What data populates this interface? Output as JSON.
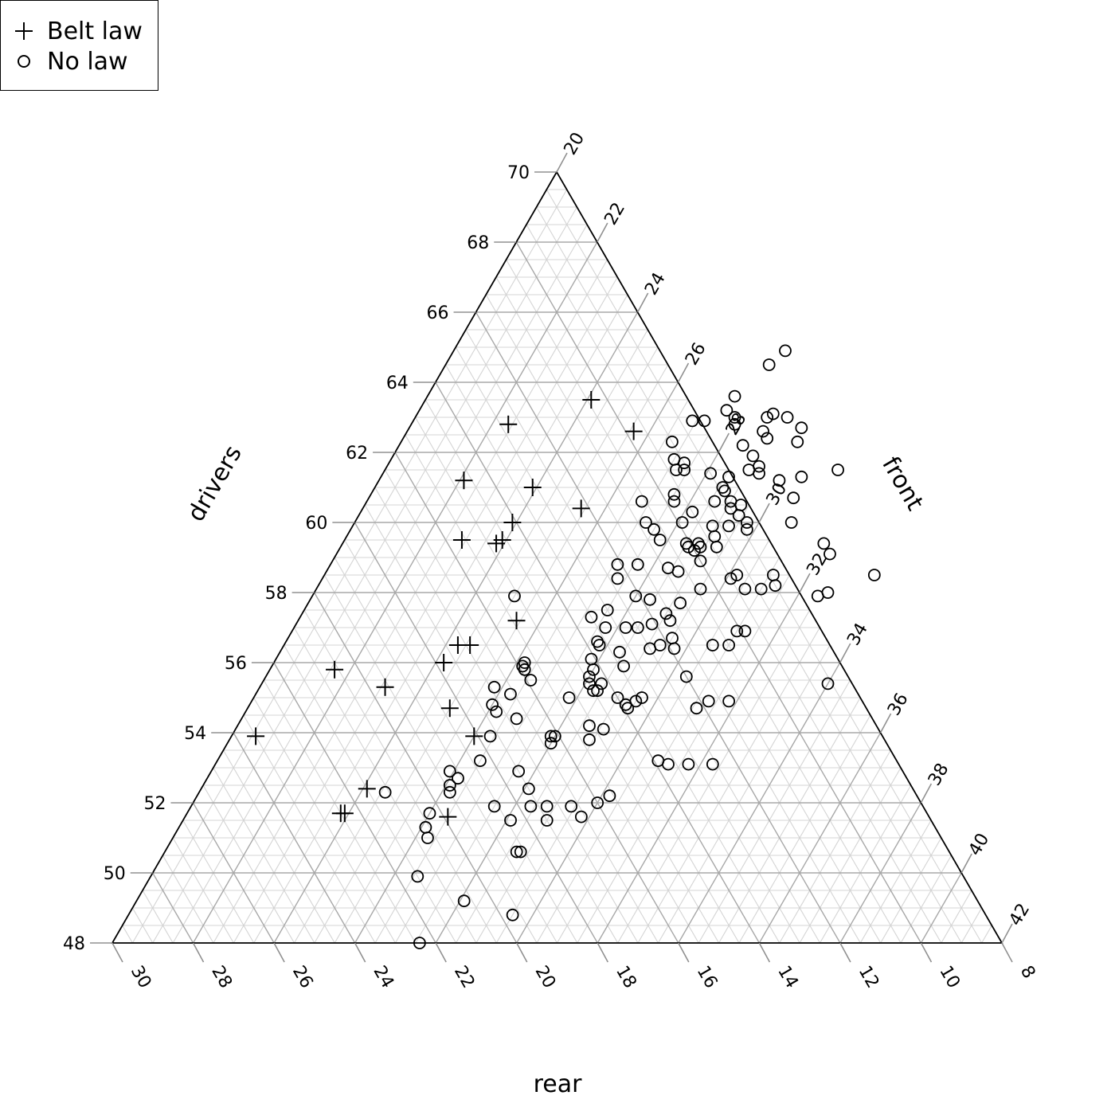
{
  "legend": {
    "belt_label": "Belt law",
    "nolaw_label": "No law"
  },
  "colors": {
    "grid_minor": "#d4d4d4",
    "grid_major": "#a8a8a8",
    "axis": "#000000",
    "marker": "#000000"
  },
  "chart_data": {
    "type": "scatter",
    "subtype": "ternary",
    "axis_labels": {
      "left": "drivers",
      "right": "front",
      "bottom": "rear"
    },
    "ranges": {
      "drivers": [
        48,
        70
      ],
      "front": [
        20,
        42
      ],
      "rear": [
        8,
        30
      ]
    },
    "ticks": {
      "drivers": [
        "48",
        "50",
        "52",
        "54",
        "56",
        "58",
        "60",
        "62",
        "64",
        "66",
        "68",
        "70"
      ],
      "front": [
        "20",
        "22",
        "24",
        "26",
        "28",
        "30",
        "32",
        "34",
        "36",
        "38",
        "40",
        "42"
      ],
      "rear": [
        "30",
        "28",
        "26",
        "24",
        "22",
        "20",
        "18",
        "16",
        "14",
        "12",
        "10",
        "8"
      ]
    },
    "grid": true,
    "legend_position": "top-left",
    "series": [
      {
        "name": "Belt law",
        "marker": "plus",
        "columns": [
          "drivers",
          "front"
        ],
        "points": [
          [
            63.5,
            24.1
          ],
          [
            62.8,
            22.4
          ],
          [
            62.6,
            25.6
          ],
          [
            61.2,
            22.1
          ],
          [
            61.0,
            23.9
          ],
          [
            60.4,
            25.4
          ],
          [
            60.0,
            23.9
          ],
          [
            59.5,
            22.9
          ],
          [
            59.5,
            23.9
          ],
          [
            59.4,
            23.8
          ],
          [
            57.2,
            25.4
          ],
          [
            56.5,
            24.3
          ],
          [
            56.5,
            24.6
          ],
          [
            56.0,
            24.2
          ],
          [
            55.8,
            21.6
          ],
          [
            55.3,
            23.1
          ],
          [
            54.7,
            25.0
          ],
          [
            53.9,
            26.0
          ],
          [
            53.9,
            20.6
          ],
          [
            52.4,
            24.1
          ],
          [
            51.7,
            23.9
          ],
          [
            51.7,
            23.8
          ],
          [
            51.6,
            26.5
          ]
        ]
      },
      {
        "name": "No law",
        "marker": "circle",
        "columns": [
          "drivers",
          "front"
        ],
        "points": [
          [
            64.9,
            28.2
          ],
          [
            64.5,
            28.0
          ],
          [
            63.6,
            27.6
          ],
          [
            63.2,
            27.6
          ],
          [
            63.1,
            28.8
          ],
          [
            63.0,
            29.2
          ],
          [
            63.0,
            28.7
          ],
          [
            63.0,
            27.9
          ],
          [
            62.9,
            26.9
          ],
          [
            62.9,
            27.2
          ],
          [
            62.8,
            28.0
          ],
          [
            62.7,
            29.7
          ],
          [
            62.6,
            28.8
          ],
          [
            62.4,
            29.0
          ],
          [
            62.3,
            26.7
          ],
          [
            62.3,
            29.8
          ],
          [
            62.2,
            28.5
          ],
          [
            61.9,
            28.9
          ],
          [
            61.8,
            27.0
          ],
          [
            61.7,
            27.3
          ],
          [
            61.6,
            29.2
          ],
          [
            61.5,
            27.2
          ],
          [
            61.5,
            27.4
          ],
          [
            61.5,
            29.0
          ],
          [
            61.5,
            31.2
          ],
          [
            61.4,
            28.1
          ],
          [
            61.4,
            29.3
          ],
          [
            61.3,
            28.6
          ],
          [
            61.3,
            30.4
          ],
          [
            61.2,
            29.9
          ],
          [
            61.0,
            28.6
          ],
          [
            60.9,
            28.7
          ],
          [
            60.8,
            27.5
          ],
          [
            60.7,
            30.5
          ],
          [
            60.6,
            26.8
          ],
          [
            60.6,
            27.6
          ],
          [
            60.6,
            28.6
          ],
          [
            60.6,
            29.0
          ],
          [
            60.5,
            29.3
          ],
          [
            60.4,
            29.1
          ],
          [
            60.3,
            28.2
          ],
          [
            60.2,
            29.4
          ],
          [
            60.0,
            27.2
          ],
          [
            60.0,
            28.1
          ],
          [
            60.0,
            29.7
          ],
          [
            60.0,
            30.8
          ],
          [
            59.9,
            28.9
          ],
          [
            59.9,
            29.3
          ],
          [
            59.8,
            29.8
          ],
          [
            59.8,
            27.5
          ],
          [
            59.6,
            29.1
          ],
          [
            59.5,
            27.8
          ],
          [
            59.4,
            28.5
          ],
          [
            59.4,
            31.9
          ],
          [
            59.4,
            28.8
          ],
          [
            59.3,
            28.6
          ],
          [
            59.3,
            29.3
          ],
          [
            59.3,
            28.9
          ],
          [
            59.2,
            28.8
          ],
          [
            59.1,
            32.2
          ],
          [
            58.9,
            29.1
          ],
          [
            58.8,
            27.1
          ],
          [
            58.8,
            27.6
          ],
          [
            58.7,
            28.4
          ],
          [
            58.6,
            28.7
          ],
          [
            58.5,
            30.2
          ],
          [
            58.5,
            31.1
          ],
          [
            58.5,
            33.6
          ],
          [
            58.4,
            27.3
          ],
          [
            58.4,
            30.1
          ],
          [
            58.2,
            31.3
          ],
          [
            58.1,
            29.5
          ],
          [
            58.1,
            30.6
          ],
          [
            58.1,
            31.0
          ],
          [
            58.0,
            32.7
          ],
          [
            57.9,
            28.0
          ],
          [
            57.9,
            32.5
          ],
          [
            57.9,
            25.0
          ],
          [
            57.8,
            28.4
          ],
          [
            57.7,
            29.2
          ],
          [
            57.5,
            27.5
          ],
          [
            57.4,
            29.0
          ],
          [
            57.3,
            27.2
          ],
          [
            57.2,
            29.2
          ],
          [
            57.1,
            28.8
          ],
          [
            57.0,
            27.7
          ],
          [
            57.0,
            28.2
          ],
          [
            57.0,
            28.5
          ],
          [
            56.9,
            31.0
          ],
          [
            56.9,
            31.2
          ],
          [
            56.7,
            29.5
          ],
          [
            56.6,
            27.7
          ],
          [
            56.5,
            27.8
          ],
          [
            56.5,
            30.6
          ],
          [
            56.5,
            31.0
          ],
          [
            56.5,
            29.3
          ],
          [
            56.4,
            29.1
          ],
          [
            56.4,
            29.7
          ],
          [
            56.3,
            28.4
          ],
          [
            56.1,
            27.8
          ],
          [
            56.0,
            26.2
          ],
          [
            55.9,
            28.7
          ],
          [
            55.9,
            26.2
          ],
          [
            55.8,
            26.3
          ],
          [
            55.8,
            28.0
          ],
          [
            55.6,
            28.0
          ],
          [
            55.6,
            30.4
          ],
          [
            55.5,
            26.6
          ],
          [
            55.4,
            28.4
          ],
          [
            55.4,
            28.1
          ],
          [
            55.4,
            34.0
          ],
          [
            55.3,
            25.8
          ],
          [
            55.2,
            28.4
          ],
          [
            55.2,
            28.3
          ],
          [
            55.1,
            26.3
          ],
          [
            55.0,
            29.0
          ],
          [
            55.0,
            29.6
          ],
          [
            55.0,
            27.8
          ],
          [
            54.9,
            29.5
          ],
          [
            54.9,
            31.3
          ],
          [
            54.9,
            31.8
          ],
          [
            54.8,
            29.3
          ],
          [
            54.8,
            26.0
          ],
          [
            54.7,
            29.4
          ],
          [
            54.7,
            31.1
          ],
          [
            54.6,
            26.2
          ],
          [
            54.4,
            26.8
          ],
          [
            54.2,
            28.7
          ],
          [
            54.1,
            29.1
          ],
          [
            53.9,
            26.4
          ],
          [
            53.9,
            27.9
          ],
          [
            53.9,
            28.0
          ],
          [
            53.8,
            28.9
          ],
          [
            53.7,
            28.0
          ],
          [
            53.2,
            26.5
          ],
          [
            53.2,
            30.9
          ],
          [
            53.1,
            31.2
          ],
          [
            53.1,
            32.3
          ],
          [
            53.1,
            31.7
          ],
          [
            52.9,
            25.9
          ],
          [
            52.9,
            27.6
          ],
          [
            52.7,
            26.2
          ],
          [
            52.5,
            26.1
          ],
          [
            52.4,
            28.1
          ],
          [
            52.3,
            24.6
          ],
          [
            52.3,
            26.2
          ],
          [
            52.2,
            30.2
          ],
          [
            52.0,
            30.0
          ],
          [
            51.9,
            27.5
          ],
          [
            51.9,
            28.4
          ],
          [
            51.9,
            28.8
          ],
          [
            51.9,
            29.4
          ],
          [
            51.7,
            26.0
          ],
          [
            51.6,
            29.8
          ],
          [
            51.5,
            29.0
          ],
          [
            51.5,
            28.1
          ],
          [
            51.3,
            26.1
          ],
          [
            51.0,
            26.3
          ],
          [
            50.6,
            28.7
          ],
          [
            50.6,
            28.8
          ],
          [
            49.9,
            26.6
          ],
          [
            49.2,
            28.1
          ],
          [
            48.8,
            29.5
          ],
          [
            48.0,
            27.6
          ]
        ]
      }
    ]
  }
}
